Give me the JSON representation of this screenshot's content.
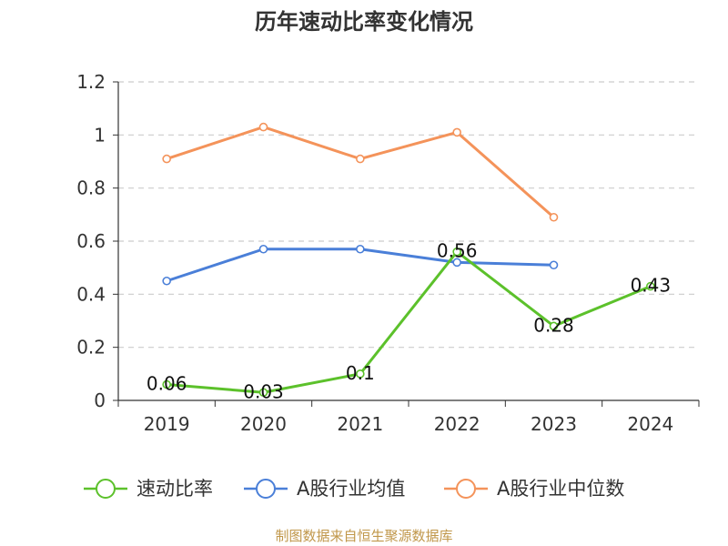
{
  "chart_data": {
    "type": "line",
    "title": "历年速动比率变化情况",
    "categories": [
      "2019",
      "2020",
      "2021",
      "2022",
      "2023",
      "2024"
    ],
    "ylim": [
      0,
      1.2
    ],
    "yticks": [
      "0",
      "0.2",
      "0.4",
      "0.6",
      "0.8",
      "1",
      "1.2"
    ],
    "grid": true,
    "legend_position": "bottom",
    "series": [
      {
        "name": "速动比率",
        "color": "#5cc12b",
        "values": [
          0.06,
          0.03,
          0.1,
          0.56,
          0.28,
          0.43
        ],
        "labels": [
          "0.06",
          "0.03",
          "0.1",
          "0.56",
          "0.28",
          "0.43"
        ]
      },
      {
        "name": "A股行业均值",
        "color": "#4a7fd8",
        "values": [
          0.45,
          0.57,
          0.57,
          0.52,
          0.51,
          null
        ]
      },
      {
        "name": "A股行业中位数",
        "color": "#f4935a",
        "values": [
          0.91,
          1.03,
          0.91,
          1.01,
          0.69,
          null
        ]
      }
    ]
  },
  "source": "制图数据来自恒生聚源数据库"
}
